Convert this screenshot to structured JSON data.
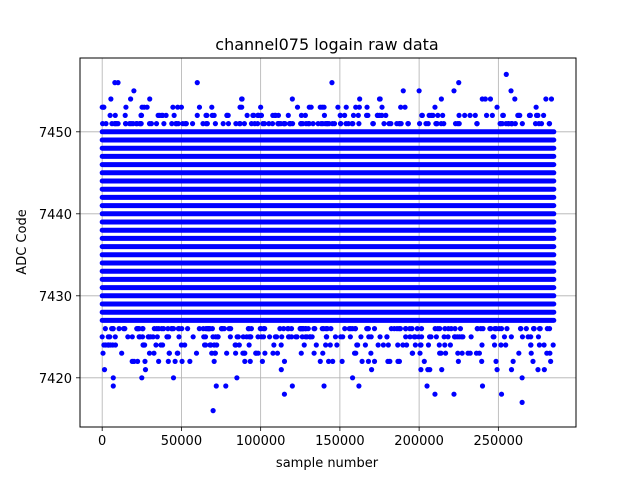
{
  "chart_data": {
    "type": "scatter",
    "title": "channel075 logain raw data",
    "xlabel": "sample number",
    "ylabel": "ADC Code",
    "xlim": [
      -14000,
      299000
    ],
    "ylim": [
      7414,
      7459
    ],
    "xticks": [
      0,
      50000,
      100000,
      150000,
      200000,
      250000
    ],
    "xtick_labels": [
      "0",
      "50000",
      "100000",
      "150000",
      "200000",
      "250000"
    ],
    "yticks": [
      7420,
      7430,
      7440,
      7450
    ],
    "ytick_labels": [
      "7420",
      "7430",
      "7440",
      "7450"
    ],
    "grid": true,
    "marker_color": "#0000ff",
    "series": [
      {
        "x_range": [
          0,
          285000
        ],
        "dense_band": [
          7426,
          7451
        ],
        "points": [
          {
            "x": 8000,
            "y": 7456
          },
          {
            "x": 10000,
            "y": 7456
          },
          {
            "x": 60000,
            "y": 7456
          },
          {
            "x": 145000,
            "y": 7456
          },
          {
            "x": 225000,
            "y": 7456
          },
          {
            "x": 255000,
            "y": 7457
          },
          {
            "x": 258000,
            "y": 7455
          },
          {
            "x": 20000,
            "y": 7455
          },
          {
            "x": 190000,
            "y": 7455
          },
          {
            "x": 200000,
            "y": 7455
          },
          {
            "x": 222000,
            "y": 7455
          },
          {
            "x": 88000,
            "y": 7454
          },
          {
            "x": 120000,
            "y": 7454
          },
          {
            "x": 30000,
            "y": 7454
          },
          {
            "x": 175000,
            "y": 7454
          },
          {
            "x": 245000,
            "y": 7454
          },
          {
            "x": 280000,
            "y": 7454
          },
          {
            "x": 5000,
            "y": 7452
          },
          {
            "x": 50000,
            "y": 7453
          },
          {
            "x": 100000,
            "y": 7453
          },
          {
            "x": 160000,
            "y": 7453
          },
          {
            "x": 210000,
            "y": 7453
          },
          {
            "x": 270000,
            "y": 7452
          },
          {
            "x": 7000,
            "y": 7420
          },
          {
            "x": 7000,
            "y": 7419
          },
          {
            "x": 25000,
            "y": 7420
          },
          {
            "x": 45000,
            "y": 7420
          },
          {
            "x": 70000,
            "y": 7416
          },
          {
            "x": 72000,
            "y": 7419
          },
          {
            "x": 78000,
            "y": 7419
          },
          {
            "x": 85000,
            "y": 7420
          },
          {
            "x": 90000,
            "y": 7422
          },
          {
            "x": 115000,
            "y": 7418
          },
          {
            "x": 120000,
            "y": 7419
          },
          {
            "x": 140000,
            "y": 7419
          },
          {
            "x": 158000,
            "y": 7420
          },
          {
            "x": 162000,
            "y": 7419
          },
          {
            "x": 170000,
            "y": 7421
          },
          {
            "x": 205000,
            "y": 7419
          },
          {
            "x": 210000,
            "y": 7418
          },
          {
            "x": 222000,
            "y": 7418
          },
          {
            "x": 240000,
            "y": 7419
          },
          {
            "x": 252000,
            "y": 7418
          },
          {
            "x": 265000,
            "y": 7417
          },
          {
            "x": 265000,
            "y": 7420
          },
          {
            "x": 275000,
            "y": 7421
          },
          {
            "x": 283000,
            "y": 7422
          }
        ]
      }
    ]
  }
}
